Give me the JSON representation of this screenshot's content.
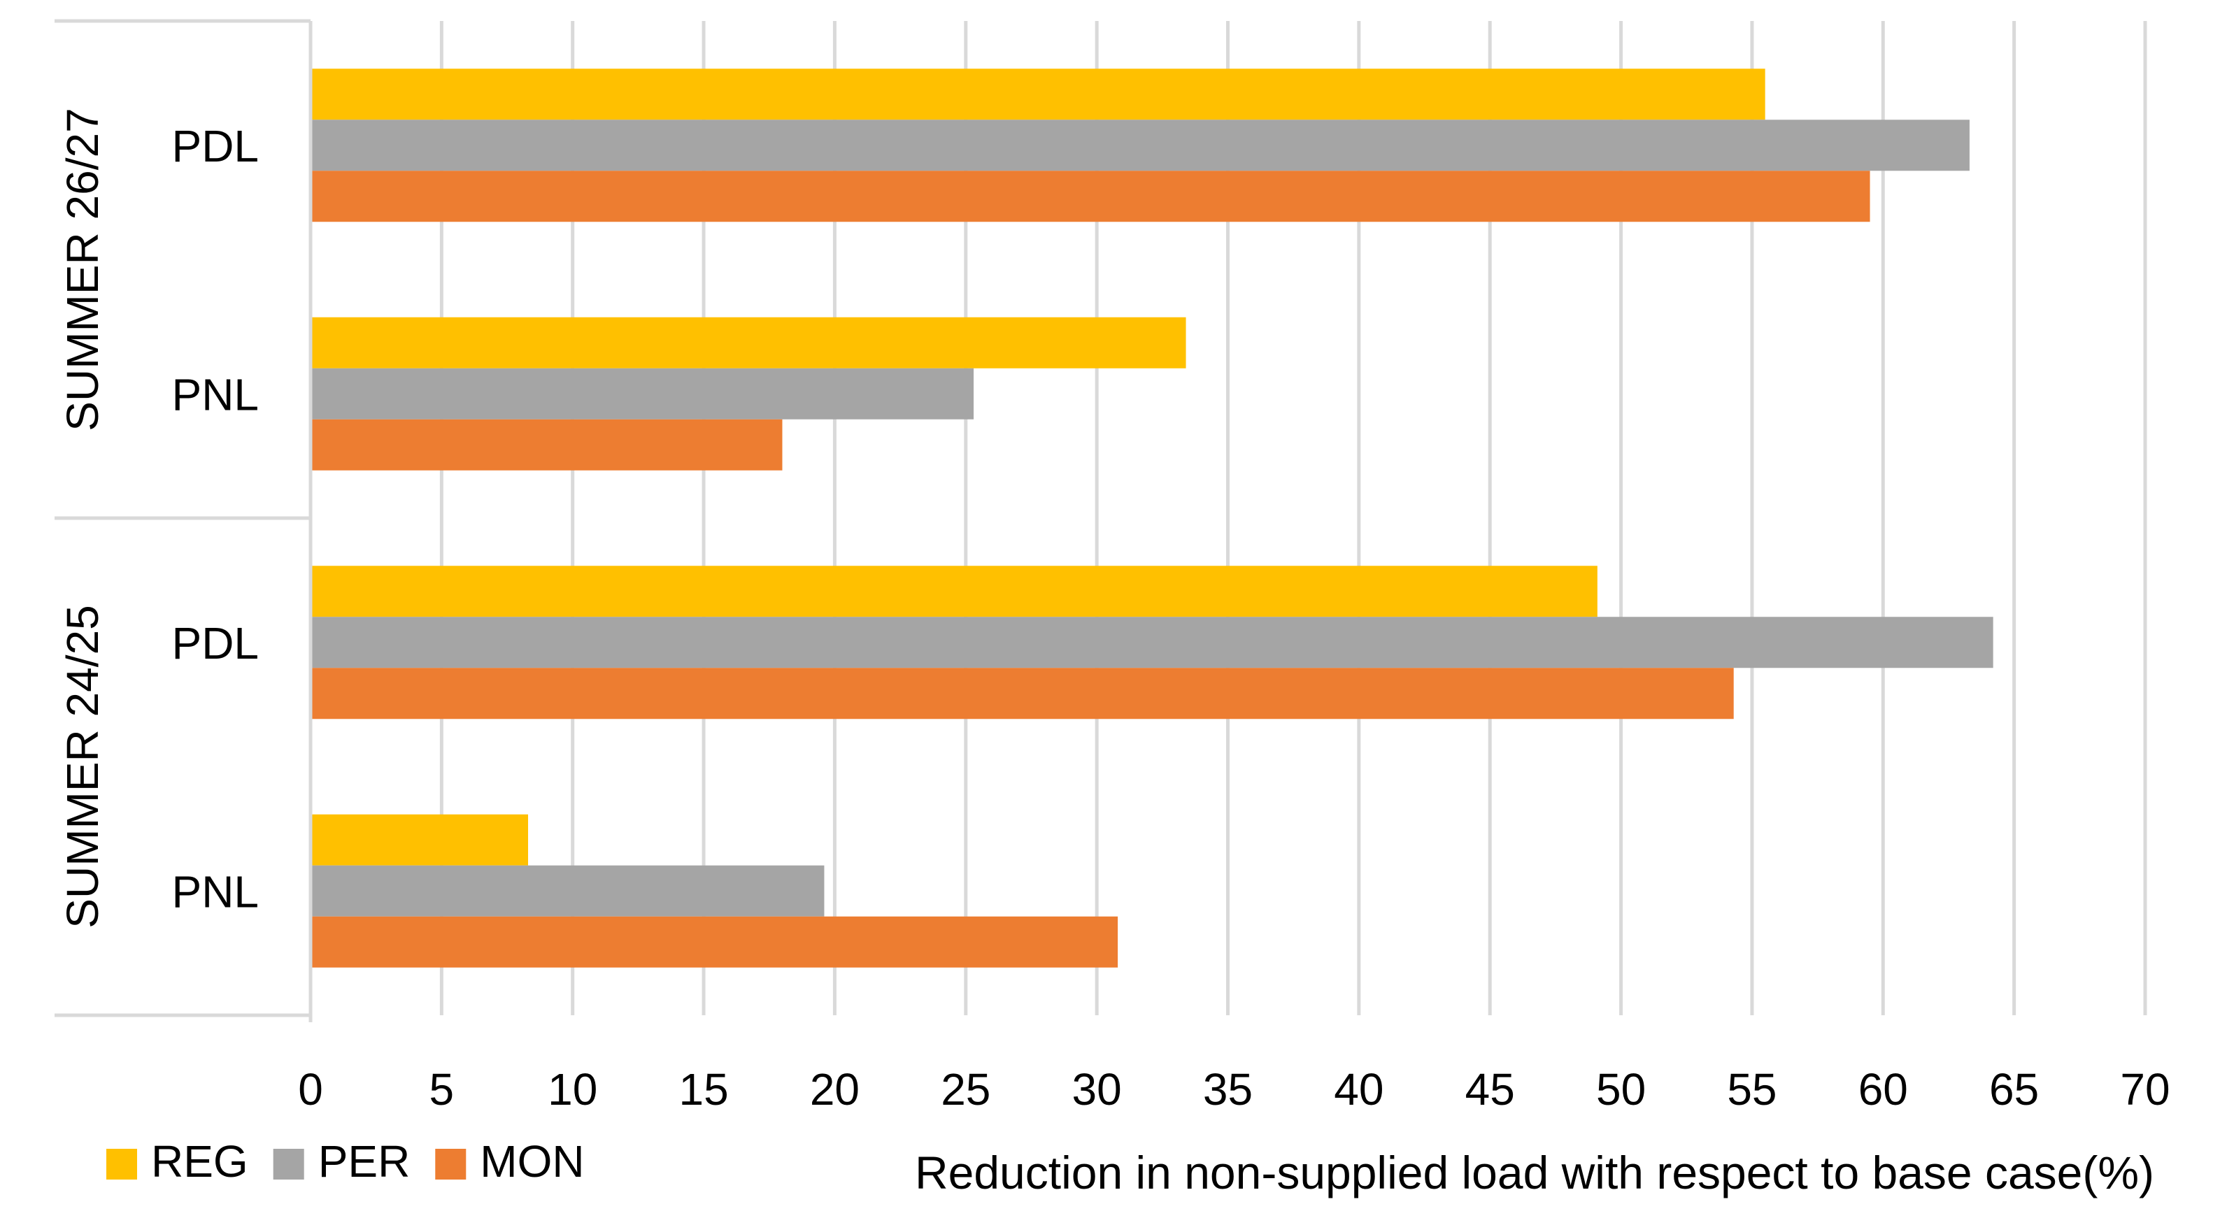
{
  "chart_data": {
    "type": "bar",
    "orientation": "horizontal",
    "title": "",
    "xlabel": "Reduction in non-supplied load with respect to base case(%)",
    "ylabel": "",
    "xlim": [
      0,
      70
    ],
    "x_ticks": [
      0,
      5,
      10,
      15,
      20,
      25,
      30,
      35,
      40,
      45,
      50,
      55,
      60,
      65,
      70
    ],
    "grid": true,
    "legend_position": "bottom-left",
    "groups": [
      {
        "name": "SUMMER 26/27",
        "categories": [
          "PDL",
          "PNL"
        ]
      },
      {
        "name": "SUMMER 24/25",
        "categories": [
          "PDL",
          "PNL"
        ]
      }
    ],
    "series": [
      {
        "name": "REG",
        "color": "#FFC000",
        "values": [
          55.5,
          33.4,
          49.1,
          8.3
        ]
      },
      {
        "name": "PER",
        "color": "#A5A5A5",
        "values": [
          63.3,
          25.3,
          64.2,
          19.6
        ]
      },
      {
        "name": "MON",
        "color": "#ED7D31",
        "values": [
          59.5,
          18.0,
          54.3,
          30.8
        ]
      }
    ]
  }
}
